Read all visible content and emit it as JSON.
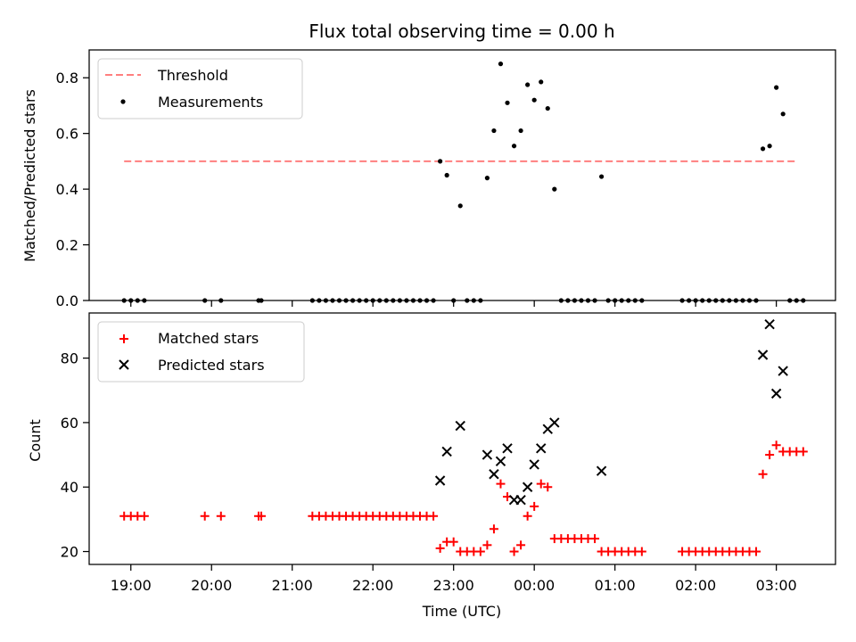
{
  "chart_data": [
    {
      "type": "scatter",
      "title": "Flux total observing time = 0.00 h",
      "xlabel": "",
      "ylabel": "Matched/Predicted stars",
      "ylim": [
        0,
        0.9
      ],
      "xlim": [
        "18:29",
        "03:44"
      ],
      "yticks": [
        "0.0",
        "0.2",
        "0.4",
        "0.6",
        "0.8"
      ],
      "legend": {
        "placement": "top-left",
        "entries": [
          "Threshold",
          "Measurements"
        ]
      },
      "threshold": {
        "name": "Threshold",
        "value": 0.5,
        "x_start": "18:55",
        "x_end": "03:15",
        "color": "#ff7f7f"
      },
      "series": [
        {
          "name": "Measurements",
          "color": "#000000",
          "points": [
            [
              "18:55",
              0
            ],
            [
              "19:00",
              0
            ],
            [
              "19:05",
              0
            ],
            [
              "19:10",
              0
            ],
            [
              "19:55",
              0
            ],
            [
              "20:07",
              0
            ],
            [
              "20:35",
              0
            ],
            [
              "20:37",
              0
            ],
            [
              "21:15",
              0
            ],
            [
              "21:20",
              0
            ],
            [
              "21:25",
              0
            ],
            [
              "21:30",
              0
            ],
            [
              "21:35",
              0
            ],
            [
              "21:40",
              0
            ],
            [
              "21:45",
              0
            ],
            [
              "21:50",
              0
            ],
            [
              "21:55",
              0
            ],
            [
              "22:00",
              0
            ],
            [
              "22:05",
              0
            ],
            [
              "22:10",
              0
            ],
            [
              "22:15",
              0
            ],
            [
              "22:20",
              0
            ],
            [
              "22:25",
              0
            ],
            [
              "22:30",
              0
            ],
            [
              "22:35",
              0
            ],
            [
              "22:40",
              0
            ],
            [
              "22:45",
              0
            ],
            [
              "22:50",
              0.5
            ],
            [
              "22:55",
              0.45
            ],
            [
              "23:00",
              0
            ],
            [
              "23:05",
              0.34
            ],
            [
              "23:10",
              0
            ],
            [
              "23:15",
              0
            ],
            [
              "23:20",
              0
            ],
            [
              "23:25",
              0.44
            ],
            [
              "23:30",
              0.61
            ],
            [
              "23:35",
              0.85
            ],
            [
              "23:40",
              0.71
            ],
            [
              "23:45",
              0.555
            ],
            [
              "23:50",
              0.61
            ],
            [
              "23:55",
              0.775
            ],
            [
              "00:00",
              0.72
            ],
            [
              "00:05",
              0.785
            ],
            [
              "00:10",
              0.69
            ],
            [
              "00:15",
              0.4
            ],
            [
              "00:20",
              0
            ],
            [
              "00:25",
              0
            ],
            [
              "00:30",
              0
            ],
            [
              "00:35",
              0
            ],
            [
              "00:40",
              0
            ],
            [
              "00:45",
              0
            ],
            [
              "00:50",
              0.445
            ],
            [
              "00:55",
              0
            ],
            [
              "01:00",
              0
            ],
            [
              "01:05",
              0
            ],
            [
              "01:10",
              0
            ],
            [
              "01:15",
              0
            ],
            [
              "01:20",
              0
            ],
            [
              "01:50",
              0
            ],
            [
              "01:55",
              0
            ],
            [
              "02:00",
              0
            ],
            [
              "02:05",
              0
            ],
            [
              "02:10",
              0
            ],
            [
              "02:15",
              0
            ],
            [
              "02:20",
              0
            ],
            [
              "02:25",
              0
            ],
            [
              "02:30",
              0
            ],
            [
              "02:35",
              0
            ],
            [
              "02:40",
              0
            ],
            [
              "02:45",
              0
            ],
            [
              "02:50",
              0.545
            ],
            [
              "02:55",
              0.555
            ],
            [
              "03:00",
              0.765
            ],
            [
              "03:05",
              0.67
            ],
            [
              "03:10",
              0
            ],
            [
              "03:15",
              0
            ],
            [
              "03:20",
              0
            ]
          ]
        }
      ]
    },
    {
      "type": "scatter",
      "title": "",
      "xlabel": "Time (UTC)",
      "ylabel": "Count",
      "ylim": [
        16,
        94
      ],
      "xlim": [
        "18:29",
        "03:44"
      ],
      "yticks": [
        "20",
        "40",
        "60",
        "80"
      ],
      "xticks": [
        "19:00",
        "20:00",
        "21:00",
        "22:00",
        "23:00",
        "00:00",
        "01:00",
        "02:00",
        "03:00"
      ],
      "legend": {
        "placement": "top-left",
        "entries": [
          "Matched stars",
          "Predicted stars"
        ]
      },
      "series": [
        {
          "name": "Matched stars",
          "marker": "plus",
          "color": "#ff0000",
          "points": [
            [
              "18:55",
              31
            ],
            [
              "19:00",
              31
            ],
            [
              "19:05",
              31
            ],
            [
              "19:10",
              31
            ],
            [
              "19:55",
              31
            ],
            [
              "20:07",
              31
            ],
            [
              "20:35",
              31
            ],
            [
              "20:37",
              31
            ],
            [
              "21:15",
              31
            ],
            [
              "21:20",
              31
            ],
            [
              "21:25",
              31
            ],
            [
              "21:30",
              31
            ],
            [
              "21:35",
              31
            ],
            [
              "21:40",
              31
            ],
            [
              "21:45",
              31
            ],
            [
              "21:50",
              31
            ],
            [
              "21:55",
              31
            ],
            [
              "22:00",
              31
            ],
            [
              "22:05",
              31
            ],
            [
              "22:10",
              31
            ],
            [
              "22:15",
              31
            ],
            [
              "22:20",
              31
            ],
            [
              "22:25",
              31
            ],
            [
              "22:30",
              31
            ],
            [
              "22:35",
              31
            ],
            [
              "22:40",
              31
            ],
            [
              "22:45",
              31
            ],
            [
              "22:50",
              21
            ],
            [
              "22:55",
              23
            ],
            [
              "23:00",
              23
            ],
            [
              "23:05",
              20
            ],
            [
              "23:10",
              20
            ],
            [
              "23:15",
              20
            ],
            [
              "23:20",
              20
            ],
            [
              "23:25",
              22
            ],
            [
              "23:30",
              27
            ],
            [
              "23:35",
              41
            ],
            [
              "23:40",
              37
            ],
            [
              "23:45",
              20
            ],
            [
              "23:50",
              22
            ],
            [
              "23:55",
              31
            ],
            [
              "00:00",
              34
            ],
            [
              "00:05",
              41
            ],
            [
              "00:10",
              40
            ],
            [
              "00:15",
              24
            ],
            [
              "00:20",
              24
            ],
            [
              "00:25",
              24
            ],
            [
              "00:30",
              24
            ],
            [
              "00:35",
              24
            ],
            [
              "00:40",
              24
            ],
            [
              "00:45",
              24
            ],
            [
              "00:50",
              20
            ],
            [
              "00:55",
              20
            ],
            [
              "01:00",
              20
            ],
            [
              "01:05",
              20
            ],
            [
              "01:10",
              20
            ],
            [
              "01:15",
              20
            ],
            [
              "01:20",
              20
            ],
            [
              "01:50",
              20
            ],
            [
              "01:55",
              20
            ],
            [
              "02:00",
              20
            ],
            [
              "02:05",
              20
            ],
            [
              "02:10",
              20
            ],
            [
              "02:15",
              20
            ],
            [
              "02:20",
              20
            ],
            [
              "02:25",
              20
            ],
            [
              "02:30",
              20
            ],
            [
              "02:35",
              20
            ],
            [
              "02:40",
              20
            ],
            [
              "02:45",
              20
            ],
            [
              "02:50",
              44
            ],
            [
              "02:55",
              50
            ],
            [
              "03:00",
              53
            ],
            [
              "03:05",
              51
            ],
            [
              "03:10",
              51
            ],
            [
              "03:15",
              51
            ],
            [
              "03:20",
              51
            ]
          ]
        },
        {
          "name": "Predicted stars",
          "marker": "x",
          "color": "#000000",
          "points": [
            [
              "22:50",
              42
            ],
            [
              "22:55",
              51
            ],
            [
              "23:05",
              59
            ],
            [
              "23:25",
              50
            ],
            [
              "23:30",
              44
            ],
            [
              "23:35",
              48
            ],
            [
              "23:40",
              52
            ],
            [
              "23:45",
              36
            ],
            [
              "23:50",
              36
            ],
            [
              "23:55",
              40
            ],
            [
              "00:00",
              47
            ],
            [
              "00:05",
              52
            ],
            [
              "00:10",
              58
            ],
            [
              "00:15",
              60
            ],
            [
              "00:50",
              45
            ],
            [
              "02:50",
              81
            ],
            [
              "02:55",
              90.5
            ],
            [
              "03:00",
              69
            ],
            [
              "03:05",
              76
            ]
          ]
        }
      ]
    }
  ]
}
